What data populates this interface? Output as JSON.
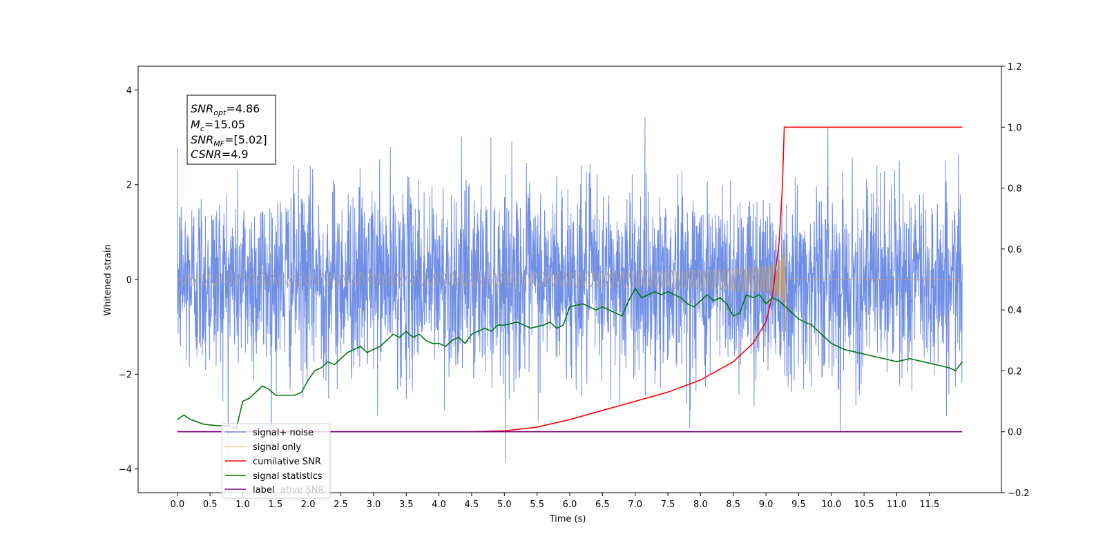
{
  "chart_data": {
    "type": "line",
    "title": "",
    "xlabel": "Time (s)",
    "ylabel": "Whitened strain",
    "y2label": "",
    "xlim": [
      -0.6,
      12.6
    ],
    "ylim": [
      -4.5,
      4.5
    ],
    "y2lim": [
      -0.2,
      1.2
    ],
    "x_ticks": [
      "0.0",
      "0.5",
      "1.0",
      "1.5",
      "2.0",
      "2.5",
      "3.0",
      "3.5",
      "4.0",
      "4.5",
      "5.0",
      "5.5",
      "6.0",
      "6.5",
      "7.0",
      "7.5",
      "8.0",
      "8.5",
      "9.0",
      "9.5",
      "10.0",
      "10.5",
      "11.0",
      "11.5"
    ],
    "y_ticks": [
      "4",
      "2",
      "0",
      "−2",
      "−4"
    ],
    "y2_ticks": [
      "1.2",
      "1.0",
      "0.8",
      "0.6",
      "0.4",
      "0.2",
      "0.0",
      "−0.2"
    ],
    "grid": false,
    "legend_position": "lower-left",
    "annotation": [
      {
        "base": "SNR",
        "sub": "opt",
        "rest": "=4.86"
      },
      {
        "base": "M",
        "sub": "c",
        "rest": "=15.05"
      },
      {
        "base": "SNR",
        "sub": "MF",
        "rest": "=[5.02]"
      },
      {
        "base": "CSNR",
        "sub": "",
        "rest": "=4.9"
      }
    ],
    "series": [
      {
        "name": "signal+ noise",
        "axis": "left",
        "color": "#6f8ee6",
        "kind": "noise",
        "x_range": [
          0,
          12
        ],
        "amplitude_sigma": 1.0,
        "max_abs": 4.1
      },
      {
        "name": "signal only",
        "axis": "left",
        "color": "#c4a070",
        "kind": "chirp",
        "x_range": [
          0,
          9.28
        ],
        "peak_amplitude": 0.85,
        "merger_time": 9.28
      },
      {
        "name": "cumilative SNR",
        "axis": "right",
        "color": "#ff0000",
        "x": [
          0,
          4.5,
          5.0,
          5.5,
          6.0,
          6.5,
          7.0,
          7.5,
          8.0,
          8.5,
          8.8,
          9.0,
          9.1,
          9.2,
          9.25,
          9.28,
          12.0
        ],
        "y": [
          0,
          0,
          0.003,
          0.015,
          0.04,
          0.07,
          0.1,
          0.13,
          0.17,
          0.23,
          0.29,
          0.36,
          0.45,
          0.62,
          0.8,
          1.0,
          1.0
        ]
      },
      {
        "name": "signal statistics",
        "axis": "right",
        "color": "#007700",
        "x": [
          0,
          0.1,
          0.2,
          0.4,
          0.6,
          0.8,
          0.9,
          1.0,
          1.1,
          1.2,
          1.3,
          1.4,
          1.5,
          1.6,
          1.7,
          1.8,
          1.9,
          2.0,
          2.1,
          2.2,
          2.3,
          2.4,
          2.5,
          2.6,
          2.7,
          2.8,
          2.9,
          3.0,
          3.1,
          3.2,
          3.3,
          3.4,
          3.5,
          3.6,
          3.7,
          3.8,
          3.9,
          4.0,
          4.1,
          4.2,
          4.3,
          4.4,
          4.5,
          4.6,
          4.7,
          4.8,
          4.9,
          5.0,
          5.2,
          5.4,
          5.6,
          5.7,
          5.8,
          5.9,
          6.0,
          6.2,
          6.4,
          6.5,
          6.8,
          6.9,
          7.0,
          7.1,
          7.2,
          7.3,
          7.4,
          7.5,
          7.6,
          7.7,
          7.8,
          7.9,
          8.0,
          8.1,
          8.2,
          8.3,
          8.4,
          8.5,
          8.6,
          8.7,
          8.8,
          8.9,
          9.0,
          9.1,
          9.2,
          9.3,
          9.4,
          9.5,
          9.6,
          9.7,
          9.8,
          9.9,
          10.0,
          10.2,
          10.4,
          10.6,
          10.8,
          11.0,
          11.2,
          11.4,
          11.6,
          11.8,
          11.9,
          12.0
        ],
        "y": [
          0.04,
          0.055,
          0.04,
          0.025,
          0.02,
          0.02,
          0.01,
          0.1,
          0.11,
          0.13,
          0.15,
          0.14,
          0.12,
          0.12,
          0.12,
          0.12,
          0.13,
          0.17,
          0.2,
          0.21,
          0.23,
          0.22,
          0.24,
          0.26,
          0.27,
          0.28,
          0.26,
          0.27,
          0.28,
          0.3,
          0.32,
          0.31,
          0.33,
          0.31,
          0.32,
          0.3,
          0.29,
          0.29,
          0.28,
          0.3,
          0.31,
          0.29,
          0.32,
          0.33,
          0.34,
          0.33,
          0.35,
          0.35,
          0.36,
          0.34,
          0.35,
          0.36,
          0.34,
          0.35,
          0.41,
          0.42,
          0.4,
          0.41,
          0.38,
          0.43,
          0.47,
          0.44,
          0.45,
          0.46,
          0.45,
          0.46,
          0.45,
          0.44,
          0.42,
          0.41,
          0.43,
          0.45,
          0.43,
          0.44,
          0.42,
          0.38,
          0.39,
          0.45,
          0.44,
          0.45,
          0.42,
          0.44,
          0.43,
          0.41,
          0.39,
          0.37,
          0.36,
          0.35,
          0.33,
          0.31,
          0.29,
          0.27,
          0.26,
          0.25,
          0.24,
          0.23,
          0.24,
          0.23,
          0.22,
          0.21,
          0.2,
          0.23
        ]
      },
      {
        "name": "label",
        "axis": "right",
        "color": "#800080",
        "x": [
          0,
          12
        ],
        "y": [
          0,
          0
        ]
      }
    ],
    "legend_overlap_text": "ative SNR"
  }
}
